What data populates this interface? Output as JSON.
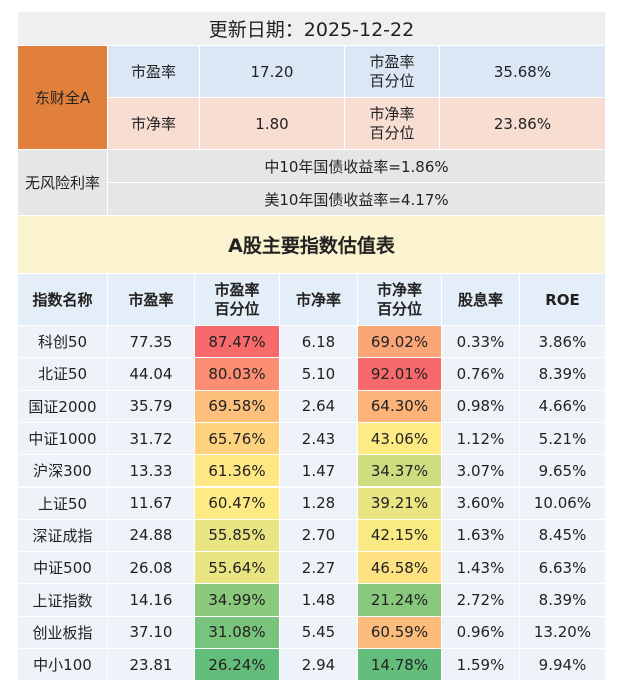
{
  "header": {
    "update_date": "更新日期：2025-12-22"
  },
  "market": {
    "name": "东财全A",
    "rows": [
      [
        "市盈率",
        "17.20",
        "市盈率百分位",
        "35.68%"
      ],
      [
        "市净率",
        "1.80",
        "市净率百分位",
        "23.86%"
      ]
    ]
  },
  "risk_free": {
    "label": "无风险利率",
    "rows": [
      "中10年国债收益率=1.86%",
      "美10年国债收益率=4.17%"
    ]
  },
  "table": {
    "title": "A股主要指数估值表",
    "columns": [
      "指数名称",
      "市盈率",
      "市盈率百分位",
      "市净率",
      "市净率百分位",
      "股息率",
      "ROE"
    ],
    "rows": [
      [
        "科创50",
        "77.35",
        "87.47%",
        "6.18",
        "69.02%",
        "0.33%",
        "3.86%"
      ],
      [
        "北证50",
        "44.04",
        "80.03%",
        "5.10",
        "92.01%",
        "0.76%",
        "8.39%"
      ],
      [
        "国证2000",
        "35.79",
        "69.58%",
        "2.64",
        "64.30%",
        "0.98%",
        "4.66%"
      ],
      [
        "中证1000",
        "31.72",
        "65.76%",
        "2.43",
        "43.06%",
        "1.12%",
        "5.21%"
      ],
      [
        "沪深300",
        "13.33",
        "61.36%",
        "1.47",
        "34.37%",
        "3.07%",
        "9.65%"
      ],
      [
        "上证50",
        "11.67",
        "60.47%",
        "1.28",
        "39.21%",
        "3.60%",
        "10.06%"
      ],
      [
        "深证成指",
        "24.88",
        "55.85%",
        "2.70",
        "42.15%",
        "1.63%",
        "8.45%"
      ],
      [
        "中证500",
        "26.08",
        "55.64%",
        "2.27",
        "46.58%",
        "1.43%",
        "6.63%"
      ],
      [
        "上证指数",
        "14.16",
        "34.99%",
        "1.48",
        "21.24%",
        "2.72%",
        "8.39%"
      ],
      [
        "创业板指",
        "37.10",
        "31.08%",
        "5.45",
        "60.59%",
        "0.96%",
        "13.20%"
      ],
      [
        "中小100",
        "23.81",
        "26.24%",
        "2.94",
        "14.78%",
        "1.59%",
        "9.94%"
      ]
    ]
  }
}
